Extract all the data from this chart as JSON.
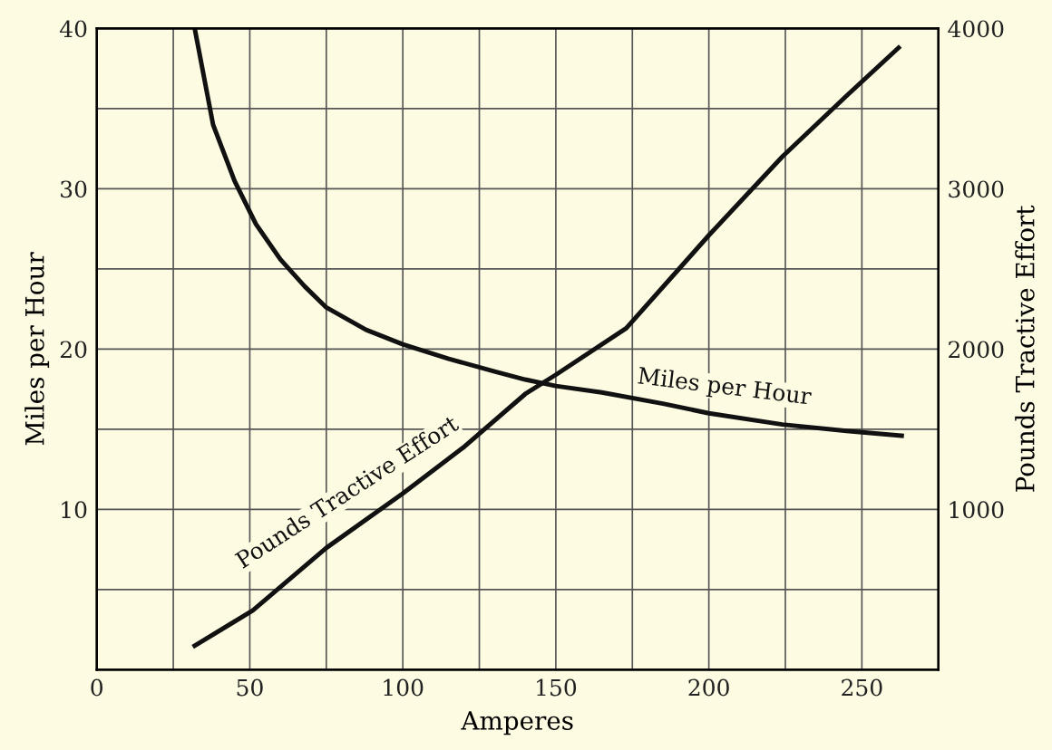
{
  "chart_data": {
    "type": "line",
    "xlabel": "Amperes",
    "ylabel": "Miles per Hour",
    "y2label": "Pounds Tractive Effort",
    "xlim": [
      0,
      275
    ],
    "xticks": [
      0,
      {
        "value": 25,
        "label": null
      },
      50,
      {
        "value": 75,
        "label": null
      },
      100,
      {
        "value": 125,
        "label": null
      },
      150,
      {
        "value": 175,
        "label": null
      },
      200,
      {
        "value": 225,
        "label": null
      },
      250
    ],
    "ylim": [
      0,
      40
    ],
    "yticks": [
      {
        "value": 5,
        "label": null
      },
      10,
      {
        "value": 15,
        "label": null
      },
      20,
      {
        "value": 25,
        "label": null
      },
      30,
      {
        "value": 35,
        "label": null
      },
      40
    ],
    "y2lim": [
      0,
      4000
    ],
    "y2ticks": [
      1000,
      2000,
      3000,
      4000
    ],
    "grid": true,
    "legend": false,
    "line_style": "solid",
    "marker": "none",
    "series": [
      {
        "name": "Miles per Hour",
        "color": "#111111",
        "x": [
          32,
          38,
          45,
          52,
          60,
          68,
          75,
          88,
          100,
          115,
          130,
          140,
          150,
          165,
          185,
          200,
          224,
          245,
          263
        ],
        "values": [
          40,
          34,
          30.5,
          27.8,
          25.6,
          23.9,
          22.6,
          21.2,
          20.3,
          19.4,
          18.6,
          18.1,
          17.7,
          17.3,
          16.6,
          16.0,
          15.3,
          14.9,
          14.6
        ]
      },
      {
        "name": "Pounds Tractive Effort",
        "color": "#111111",
        "axis": "y2",
        "x": [
          32,
          51,
          75,
          100,
          120,
          140,
          150,
          173,
          200,
          224,
          245,
          262
        ],
        "values": [
          150,
          370,
          760,
          1100,
          1390,
          1720,
          1840,
          2130,
          2710,
          3200,
          3580,
          3880
        ]
      }
    ]
  }
}
